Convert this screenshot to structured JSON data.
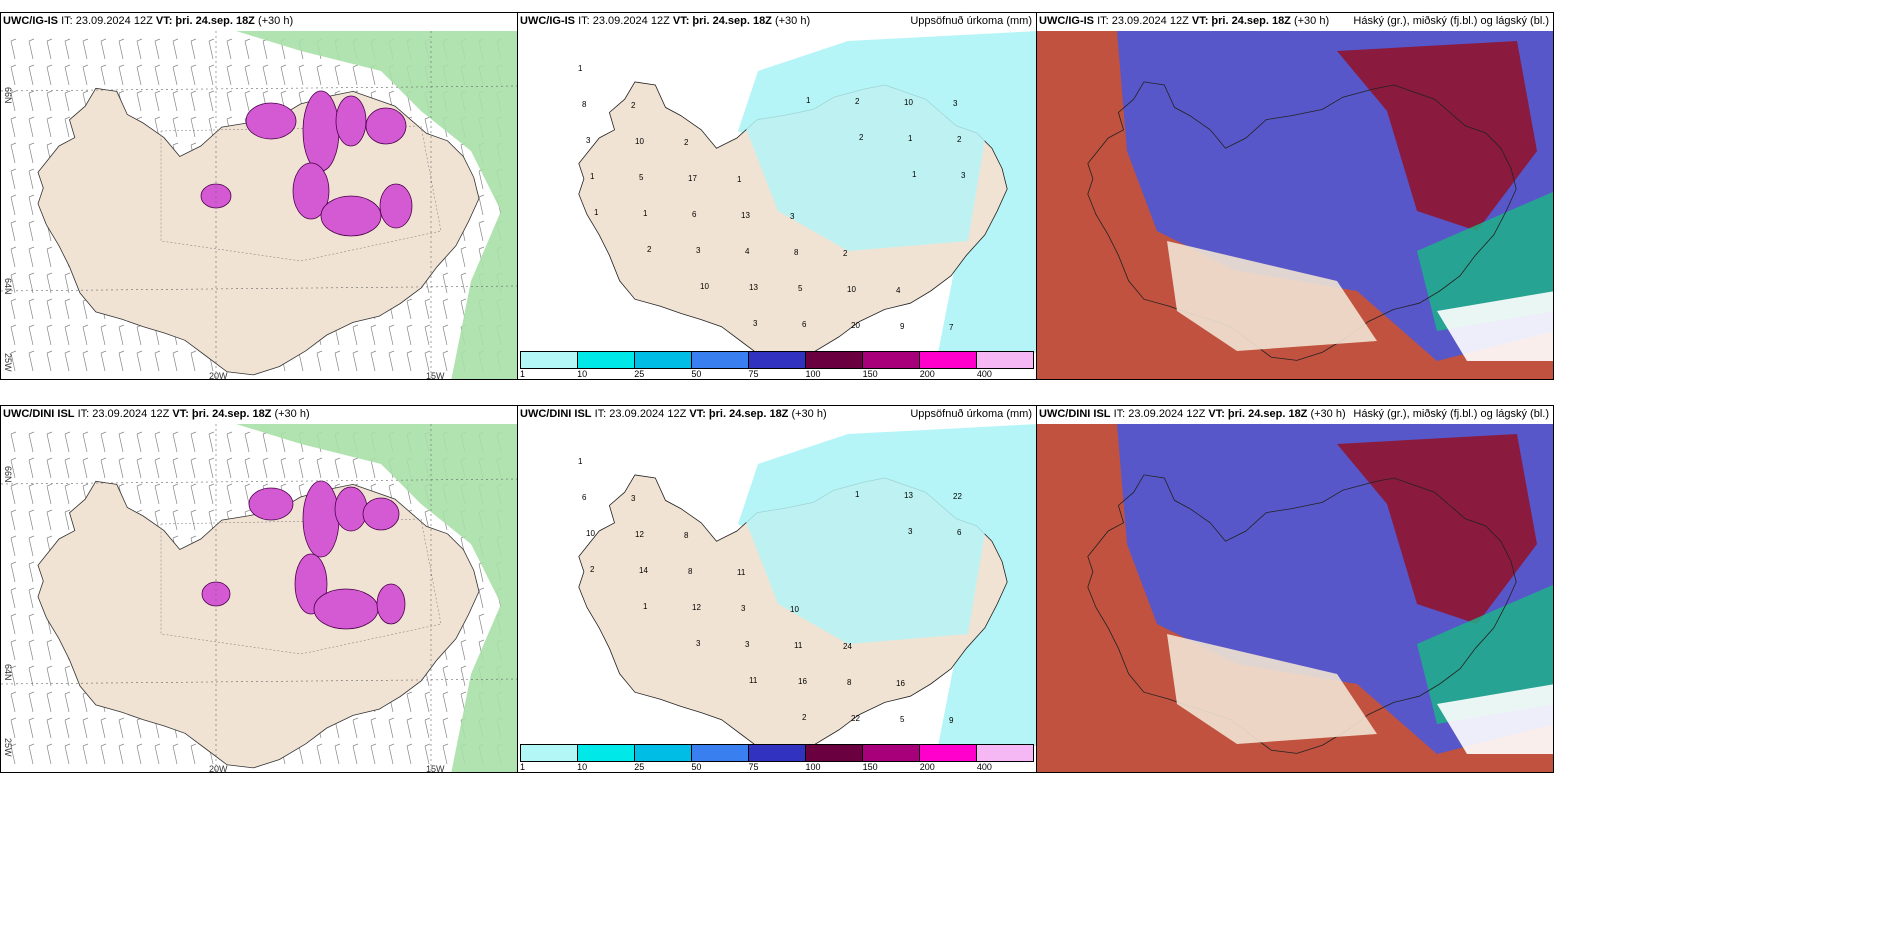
{
  "rows": [
    {
      "model": "UWC/IG-IS",
      "it": "IT: 23.09.2024 12Z",
      "vt_label": "VT:",
      "vt": "þri. 24.sep. 18Z",
      "lead": "(+30 h)",
      "axis_labels": {
        "lat_top": "66N",
        "lat_mid": "64N",
        "lat_bot": "25W",
        "lon_a": "20W",
        "lon_b": "15W"
      }
    },
    {
      "model": "UWC/DINI ISL",
      "it": "IT: 23.09.2024 12Z",
      "vt_label": "VT:",
      "vt": "þri. 24.sep. 18Z",
      "lead": "(+30 h)",
      "axis_labels": {
        "lat_top": "66N",
        "lat_mid": "64N",
        "lat_bot": "25W",
        "lon_a": "20W",
        "lon_b": "15W"
      }
    }
  ],
  "precip_title": "Uppsöfnuð úrkoma (mm)",
  "cloud_title": "Háský (gr.), miðský (fj.bl.) og lágský (bl.)",
  "legend": {
    "ticks": [
      "1",
      "10",
      "25",
      "50",
      "75",
      "100",
      "150",
      "200",
      "400"
    ],
    "colors": [
      "#b3f7f7",
      "#00e8e8",
      "#00bde6",
      "#3a7ff0",
      "#3232c0",
      "#6a0040",
      "#a8007a",
      "#ff00cc",
      "#f5b8f5"
    ]
  },
  "colors": {
    "land": "#f1e3d3",
    "precip_light": "#b5f5f7",
    "snow": "#d45ad4",
    "green": "#a9e0a9",
    "cloud_high": "#5757c9",
    "cloud_mid": "#8b1a3f",
    "cloud_low": "#c0523f"
  },
  "precip_labels_top": [
    "1",
    "2",
    "2",
    "1",
    "3",
    "2",
    "4",
    "7",
    "8",
    "10",
    "17",
    "13",
    "8",
    "10",
    "9",
    "3",
    "3",
    "5",
    "6",
    "4",
    "5",
    "20",
    "10",
    "2",
    "1",
    "1",
    "3",
    "13",
    "6",
    "2",
    "1",
    "3",
    "1",
    "2",
    "10",
    "3",
    "1",
    "2",
    "1"
  ],
  "precip_labels_bot": [
    "1",
    "3",
    "8",
    "11",
    "10",
    "24",
    "16",
    "9",
    "6",
    "12",
    "8",
    "3",
    "11",
    "8",
    "5",
    "22",
    "10",
    "14",
    "12",
    "3",
    "16",
    "22",
    "13",
    "6",
    "2",
    "1",
    "3",
    "11",
    "2",
    "1",
    "3"
  ]
}
